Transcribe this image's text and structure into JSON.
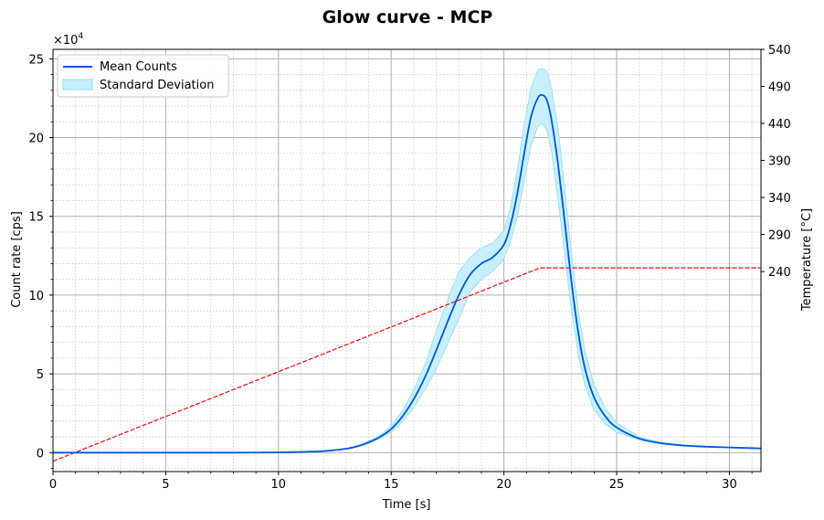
{
  "chart_data": {
    "type": "line",
    "title": "Glow curve - MCP",
    "xlabel": "Time [s]",
    "ylabel": "Count rate [cps]",
    "y2label": "Temperature [°C]",
    "y_multiplier": "×10",
    "y_multiplier_exp": "4",
    "xlim": [
      0,
      31.4
    ],
    "ylim": [
      -1.2,
      25.6
    ],
    "y2lim": [
      -30,
      540
    ],
    "x_ticks": [
      0,
      5,
      10,
      15,
      20,
      25,
      30
    ],
    "y_ticks": [
      0,
      5,
      10,
      15,
      20,
      25
    ],
    "y2_ticks": [
      240,
      290,
      340,
      390,
      440,
      490,
      540
    ],
    "y2_highlight_tick": 240,
    "grid": true,
    "minor_grid": true,
    "legend_position": "top-left",
    "legend": [
      "Mean Counts",
      "Standard Deviation"
    ],
    "colors": {
      "mean": "#0055e0",
      "band_fill": "#c8f0fc",
      "band_edge": "#8fdcf7",
      "temperature": "#ff0000",
      "highlight_tick": "#ff0000"
    },
    "series": [
      {
        "name": "Mean Counts",
        "axis": "left",
        "x": [
          0,
          2,
          4,
          6,
          8,
          10,
          11,
          12,
          13,
          13.5,
          14,
          14.5,
          15,
          15.5,
          16,
          16.5,
          17,
          17.5,
          18,
          18.5,
          19,
          19.5,
          20,
          20.3,
          20.6,
          20.9,
          21.2,
          21.5,
          21.7,
          21.9,
          22.1,
          22.4,
          22.7,
          23,
          23.3,
          23.6,
          24,
          24.5,
          25,
          26,
          27,
          28,
          29,
          30,
          31.4
        ],
        "y": [
          0,
          0,
          0,
          0,
          0,
          0.02,
          0.05,
          0.1,
          0.25,
          0.4,
          0.65,
          1.0,
          1.5,
          2.3,
          3.4,
          4.8,
          6.5,
          8.3,
          10.0,
          11.3,
          12.0,
          12.4,
          13.2,
          14.5,
          16.5,
          19.0,
          21.3,
          22.5,
          22.7,
          22.4,
          21.2,
          18.3,
          14.6,
          10.8,
          7.6,
          5.3,
          3.5,
          2.3,
          1.6,
          0.9,
          0.6,
          0.45,
          0.38,
          0.33,
          0.27
        ]
      },
      {
        "name": "Standard Deviation",
        "axis": "left",
        "x": [
          0,
          2,
          4,
          6,
          8,
          10,
          11,
          12,
          13,
          13.5,
          14,
          14.5,
          15,
          15.5,
          16,
          16.5,
          17,
          17.5,
          18,
          18.5,
          19,
          19.5,
          20,
          20.3,
          20.6,
          20.9,
          21.2,
          21.5,
          21.7,
          21.9,
          22.1,
          22.4,
          22.7,
          23,
          23.3,
          23.6,
          24,
          24.5,
          25,
          26,
          27,
          28,
          29,
          30,
          31.4
        ],
        "lower": [
          0,
          0,
          0,
          0,
          0,
          0.02,
          0.05,
          0.1,
          0.23,
          0.36,
          0.58,
          0.9,
          1.3,
          1.95,
          2.85,
          4.0,
          5.3,
          6.9,
          8.5,
          10.2,
          11.0,
          11.5,
          12.3,
          13.4,
          15.0,
          17.2,
          19.5,
          20.7,
          20.9,
          20.5,
          19.2,
          16.0,
          12.5,
          9.0,
          6.2,
          4.2,
          2.7,
          1.8,
          1.3,
          0.8,
          0.55,
          0.42,
          0.36,
          0.32,
          0.26
        ],
        "upper": [
          0,
          0,
          0,
          0,
          0,
          0.02,
          0.05,
          0.1,
          0.27,
          0.44,
          0.72,
          1.1,
          1.7,
          2.65,
          3.95,
          5.6,
          7.7,
          9.7,
          11.5,
          12.4,
          13.0,
          13.3,
          14.1,
          15.6,
          18.0,
          20.8,
          23.1,
          24.3,
          24.4,
          24.2,
          23.2,
          20.6,
          16.7,
          12.6,
          9.0,
          6.4,
          4.3,
          2.8,
          1.9,
          1.0,
          0.65,
          0.48,
          0.4,
          0.34,
          0.28
        ]
      },
      {
        "name": "Temperature",
        "axis": "right",
        "x": [
          0,
          21.6,
          31.4
        ],
        "y": [
          -16,
          245,
          245
        ]
      }
    ]
  }
}
